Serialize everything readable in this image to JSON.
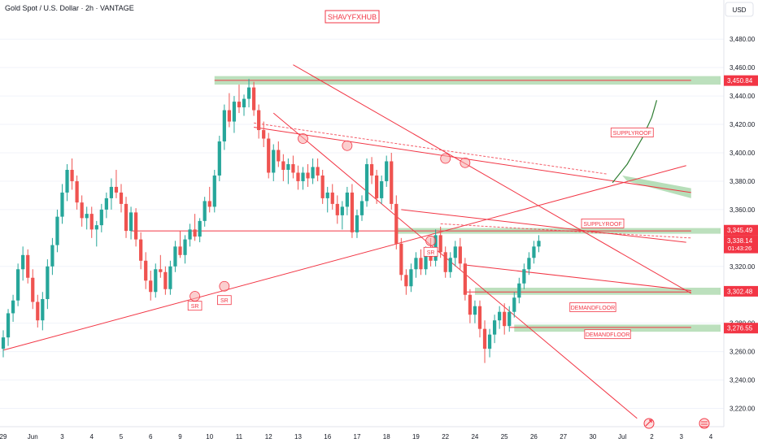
{
  "header": {
    "symbol": "Gold Spot / U.S. Dollar · 2h · VANTAGE",
    "brand": "SHAVYFXHUB",
    "currency": "USD"
  },
  "colors": {
    "up": "#26a69a",
    "down": "#ef5350",
    "line": "#f23645",
    "zone": "#a5d6a7",
    "curve": "#2e7d32",
    "label_bg": "#f23645",
    "grid": "#f0f3fa"
  },
  "chart_data": {
    "type": "candlestick",
    "ylim": [
      3210,
      3495
    ],
    "y_ticks": [
      "3,480.00",
      "3,460.00",
      "3,440.00",
      "3,420.00",
      "3,400.00",
      "3,380.00",
      "3,360.00",
      "3,320.00",
      "3,280.00",
      "3,260.00",
      "3,240.00",
      "3,220.00"
    ],
    "y_tick_values": [
      3480,
      3460,
      3440,
      3420,
      3400,
      3380,
      3360,
      3320,
      3280,
      3260,
      3240,
      3220
    ],
    "x_ticks": [
      "29",
      "Jun",
      "3",
      "4",
      "5",
      "6",
      "9",
      "10",
      "11",
      "12",
      "13",
      "16",
      "17",
      "18",
      "19",
      "22",
      "24",
      "25",
      "26",
      "27",
      "30",
      "Jul",
      "2",
      "3",
      "4"
    ],
    "x_tick_index": [
      0,
      6,
      12,
      18,
      24,
      30,
      36,
      42,
      48,
      54,
      60,
      66,
      72,
      78,
      84,
      90,
      96,
      102,
      108,
      114,
      120,
      126,
      132,
      138,
      144
    ],
    "x_max_index": 146,
    "price_labels": [
      {
        "text": "3,450.84",
        "value": 3450.84
      },
      {
        "text": "3,345.49",
        "value": 3345.49
      },
      {
        "text": "3,338.14",
        "value": 3338.14,
        "sub": "01:43:26"
      },
      {
        "text": "3,302.48",
        "value": 3302.48
      },
      {
        "text": "3,276.55",
        "value": 3276.55
      }
    ],
    "zones": [
      {
        "from_index": 43,
        "to_index": 146,
        "low": 3448,
        "high": 3454
      },
      {
        "from_index": 80,
        "to_index": 146,
        "low": 3343,
        "high": 3347
      },
      {
        "from_index": 96,
        "to_index": 146,
        "low": 3300,
        "high": 3305
      },
      {
        "from_index": 104,
        "to_index": 146,
        "low": 3274,
        "high": 3279
      }
    ],
    "annotations": [
      {
        "text": "SUPPLYROOF",
        "index": 128,
        "value": 3414
      },
      {
        "text": "SUPPLYROOF",
        "index": 122,
        "value": 3350
      },
      {
        "text": "DEMANDFLOOR",
        "index": 120,
        "value": 3291
      },
      {
        "text": "DEMANDFLOOR",
        "index": 123,
        "value": 3272
      },
      {
        "text": "SR",
        "index": 39,
        "value": 3292
      },
      {
        "text": "SR",
        "index": 45,
        "value": 3296
      },
      {
        "text": "SR",
        "index": 87,
        "value": 3330
      }
    ],
    "trendlines": [
      {
        "from": [
          0,
          3261
        ],
        "to": [
          139,
          3391
        ]
      },
      {
        "from": [
          59,
          3462
        ],
        "to": [
          140,
          3301
        ]
      },
      {
        "from": [
          55,
          3428
        ],
        "to": [
          129,
          3213
        ]
      },
      {
        "from": [
          51,
          3418
        ],
        "to": [
          140,
          3372
        ]
      },
      {
        "from": [
          81,
          3360
        ],
        "to": [
          139,
          3337
        ]
      },
      {
        "from": [
          94,
          3321
        ],
        "to": [
          140,
          3303
        ]
      },
      {
        "from": [
          26,
          3345
        ],
        "to": [
          140,
          3345
        ]
      },
      {
        "from": [
          43,
          3451
        ],
        "to": [
          140,
          3451
        ]
      },
      {
        "from": [
          94,
          3302
        ],
        "to": [
          140,
          3302
        ]
      },
      {
        "from": [
          103,
          3277
        ],
        "to": [
          140,
          3277
        ]
      }
    ],
    "dashed_trendlines": [
      {
        "from": [
          51,
          3421
        ],
        "to": [
          123,
          3385
        ]
      },
      {
        "from": [
          89,
          3350
        ],
        "to": [
          140,
          3340
        ]
      }
    ],
    "projection_curve": [
      [
        124,
        3379
      ],
      [
        127,
        3392
      ],
      [
        130,
        3410
      ],
      [
        132,
        3425
      ],
      [
        133,
        3437
      ]
    ],
    "projection_zone": [
      [
        126,
        3384
      ],
      [
        140,
        3375
      ],
      [
        140,
        3368
      ],
      [
        127,
        3380
      ]
    ],
    "circles": [
      {
        "index": 61,
        "value": 3410
      },
      {
        "index": 70,
        "value": 3405
      },
      {
        "index": 90,
        "value": 3396
      },
      {
        "index": 94,
        "value": 3393
      },
      {
        "index": 39,
        "value": 3299
      },
      {
        "index": 45,
        "value": 3306
      },
      {
        "index": 87,
        "value": 3338
      }
    ],
    "candles": [
      [
        3262,
        3275,
        3256,
        3270
      ],
      [
        3270,
        3290,
        3264,
        3287
      ],
      [
        3287,
        3300,
        3281,
        3296
      ],
      [
        3296,
        3322,
        3292,
        3318
      ],
      [
        3318,
        3334,
        3310,
        3328
      ],
      [
        3328,
        3332,
        3308,
        3312
      ],
      [
        3312,
        3318,
        3290,
        3295
      ],
      [
        3295,
        3300,
        3277,
        3282
      ],
      [
        3282,
        3302,
        3275,
        3297
      ],
      [
        3297,
        3325,
        3290,
        3320
      ],
      [
        3320,
        3340,
        3314,
        3335
      ],
      [
        3335,
        3360,
        3330,
        3355
      ],
      [
        3355,
        3378,
        3350,
        3372
      ],
      [
        3372,
        3392,
        3366,
        3388
      ],
      [
        3388,
        3396,
        3374,
        3380
      ],
      [
        3380,
        3384,
        3360,
        3365
      ],
      [
        3365,
        3370,
        3348,
        3354
      ],
      [
        3354,
        3362,
        3346,
        3357
      ],
      [
        3357,
        3362,
        3340,
        3346
      ],
      [
        3346,
        3352,
        3334,
        3349
      ],
      [
        3349,
        3364,
        3344,
        3360
      ],
      [
        3360,
        3372,
        3354,
        3368
      ],
      [
        3368,
        3382,
        3360,
        3376
      ],
      [
        3376,
        3388,
        3368,
        3372
      ],
      [
        3372,
        3378,
        3358,
        3364
      ],
      [
        3364,
        3369,
        3340,
        3345
      ],
      [
        3345,
        3362,
        3339,
        3358
      ],
      [
        3358,
        3361,
        3334,
        3339
      ],
      [
        3339,
        3344,
        3318,
        3324
      ],
      [
        3324,
        3330,
        3304,
        3310
      ],
      [
        3310,
        3317,
        3296,
        3302
      ],
      [
        3302,
        3322,
        3298,
        3318
      ],
      [
        3318,
        3328,
        3312,
        3316
      ],
      [
        3316,
        3320,
        3300,
        3304
      ],
      [
        3304,
        3324,
        3300,
        3320
      ],
      [
        3320,
        3338,
        3316,
        3334
      ],
      [
        3334,
        3345,
        3326,
        3328
      ],
      [
        3328,
        3342,
        3322,
        3339
      ],
      [
        3339,
        3350,
        3334,
        3346
      ],
      [
        3346,
        3357,
        3338,
        3341
      ],
      [
        3341,
        3354,
        3337,
        3352
      ],
      [
        3352,
        3369,
        3348,
        3366
      ],
      [
        3366,
        3376,
        3358,
        3362
      ],
      [
        3362,
        3388,
        3358,
        3384
      ],
      [
        3384,
        3412,
        3380,
        3408
      ],
      [
        3408,
        3434,
        3402,
        3430
      ],
      [
        3430,
        3442,
        3418,
        3422
      ],
      [
        3422,
        3440,
        3414,
        3436
      ],
      [
        3436,
        3448,
        3428,
        3432
      ],
      [
        3432,
        3441,
        3426,
        3438
      ],
      [
        3438,
        3452,
        3432,
        3446
      ],
      [
        3446,
        3450,
        3426,
        3430
      ],
      [
        3430,
        3434,
        3410,
        3416
      ],
      [
        3416,
        3422,
        3404,
        3410
      ],
      [
        3410,
        3414,
        3382,
        3386
      ],
      [
        3386,
        3406,
        3380,
        3402
      ],
      [
        3402,
        3408,
        3390,
        3394
      ],
      [
        3394,
        3399,
        3380,
        3388
      ],
      [
        3388,
        3396,
        3378,
        3392
      ],
      [
        3392,
        3398,
        3382,
        3386
      ],
      [
        3386,
        3391,
        3374,
        3380
      ],
      [
        3380,
        3390,
        3374,
        3386
      ],
      [
        3386,
        3392,
        3376,
        3382
      ],
      [
        3382,
        3396,
        3378,
        3390
      ],
      [
        3390,
        3396,
        3380,
        3384
      ],
      [
        3384,
        3388,
        3364,
        3368
      ],
      [
        3368,
        3376,
        3358,
        3372
      ],
      [
        3372,
        3378,
        3360,
        3364
      ],
      [
        3364,
        3370,
        3350,
        3356
      ],
      [
        3356,
        3366,
        3346,
        3362
      ],
      [
        3362,
        3376,
        3356,
        3372
      ],
      [
        3372,
        3378,
        3340,
        3344
      ],
      [
        3344,
        3360,
        3340,
        3356
      ],
      [
        3356,
        3370,
        3352,
        3366
      ],
      [
        3366,
        3396,
        3362,
        3392
      ],
      [
        3392,
        3397,
        3378,
        3384
      ],
      [
        3384,
        3388,
        3364,
        3368
      ],
      [
        3368,
        3384,
        3364,
        3380
      ],
      [
        3380,
        3398,
        3376,
        3394
      ],
      [
        3394,
        3400,
        3360,
        3364
      ],
      [
        3364,
        3370,
        3332,
        3336
      ],
      [
        3336,
        3340,
        3310,
        3314
      ],
      [
        3314,
        3318,
        3300,
        3306
      ],
      [
        3306,
        3322,
        3302,
        3318
      ],
      [
        3318,
        3330,
        3312,
        3326
      ],
      [
        3326,
        3332,
        3314,
        3318
      ],
      [
        3318,
        3334,
        3314,
        3330
      ],
      [
        3330,
        3340,
        3320,
        3324
      ],
      [
        3324,
        3346,
        3320,
        3342
      ],
      [
        3342,
        3348,
        3326,
        3330
      ],
      [
        3330,
        3334,
        3312,
        3316
      ],
      [
        3316,
        3330,
        3312,
        3326
      ],
      [
        3326,
        3338,
        3320,
        3334
      ],
      [
        3334,
        3340,
        3318,
        3322
      ],
      [
        3322,
        3326,
        3296,
        3300
      ],
      [
        3300,
        3304,
        3280,
        3286
      ],
      [
        3286,
        3296,
        3280,
        3292
      ],
      [
        3292,
        3296,
        3270,
        3276
      ],
      [
        3276,
        3282,
        3252,
        3262
      ],
      [
        3262,
        3276,
        3256,
        3272
      ],
      [
        3272,
        3286,
        3266,
        3282
      ],
      [
        3282,
        3292,
        3276,
        3288
      ],
      [
        3288,
        3294,
        3272,
        3278
      ],
      [
        3278,
        3292,
        3274,
        3288
      ],
      [
        3288,
        3302,
        3284,
        3298
      ],
      [
        3298,
        3312,
        3294,
        3308
      ],
      [
        3308,
        3322,
        3304,
        3318
      ],
      [
        3318,
        3330,
        3314,
        3326
      ],
      [
        3326,
        3338,
        3322,
        3334
      ],
      [
        3334,
        3342,
        3330,
        3338
      ]
    ]
  }
}
